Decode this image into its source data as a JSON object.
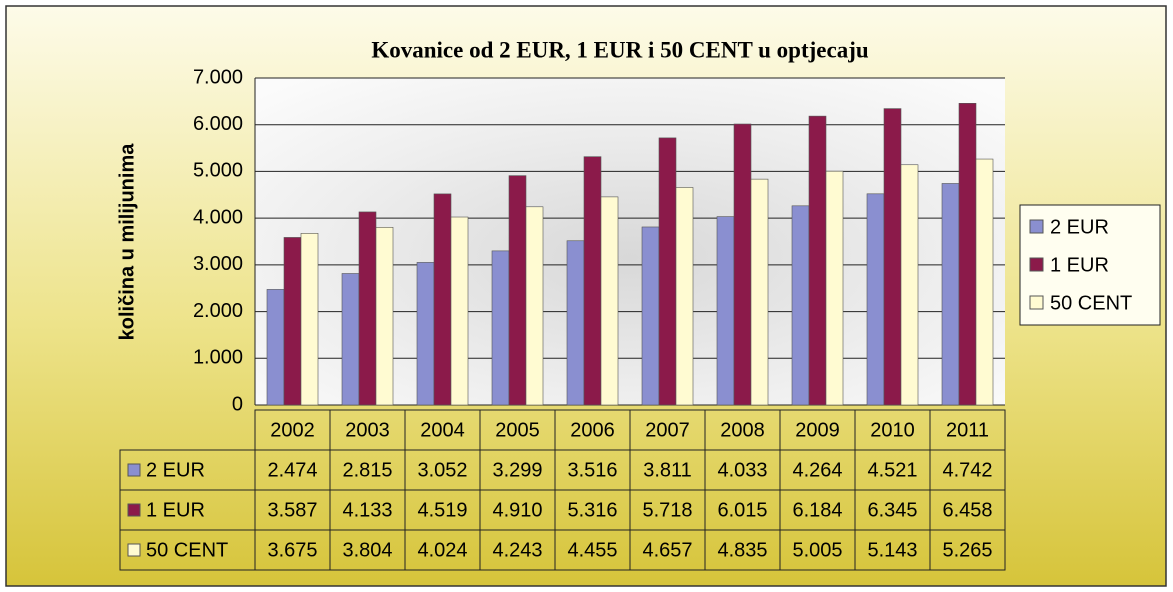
{
  "chart_data": {
    "type": "bar",
    "title": "Kovanice od 2 EUR, 1 EUR i 50 CENT u optjecaju",
    "y_label": "količina u milijunima",
    "categories": [
      "2002",
      "2003",
      "2004",
      "2005",
      "2006",
      "2007",
      "2008",
      "2009",
      "2010",
      "2011"
    ],
    "series": [
      {
        "name": "2 EUR",
        "color": "#8a8fd0",
        "values": [
          2474,
          2815,
          3052,
          3299,
          3516,
          3811,
          4033,
          4264,
          4521,
          4742
        ],
        "value_labels": [
          "2.474",
          "2.815",
          "3.052",
          "3.299",
          "3.516",
          "3.811",
          "4.033",
          "4.264",
          "4.521",
          "4.742"
        ]
      },
      {
        "name": "1 EUR",
        "color": "#8b1a4a",
        "values": [
          3587,
          4133,
          4519,
          4910,
          5316,
          5718,
          6015,
          6184,
          6345,
          6458
        ],
        "value_labels": [
          "3.587",
          "4.133",
          "4.519",
          "4.910",
          "5.316",
          "5.718",
          "6.015",
          "6.184",
          "6.345",
          "6.458"
        ]
      },
      {
        "name": "50 CENT",
        "color": "#fffbd2",
        "values": [
          3675,
          3804,
          4024,
          4243,
          4455,
          4657,
          4835,
          5005,
          5143,
          5265
        ],
        "value_labels": [
          "3.675",
          "3.804",
          "4.024",
          "4.243",
          "4.455",
          "4.657",
          "4.835",
          "5.005",
          "5.143",
          "5.265"
        ]
      }
    ],
    "ylim": [
      0,
      7000
    ],
    "yticks": [
      0,
      {
        "value": 1000,
        "label": "1.000"
      },
      {
        "value": 2000,
        "label": "2.000"
      },
      {
        "value": 3000,
        "label": "3.000"
      },
      {
        "value": 4000,
        "label": "4.000"
      },
      {
        "value": 5000,
        "label": "5.000"
      },
      {
        "value": 6000,
        "label": "6.000"
      },
      {
        "value": 7000,
        "label": "7.000"
      }
    ],
    "grid": true,
    "legend": "right"
  }
}
